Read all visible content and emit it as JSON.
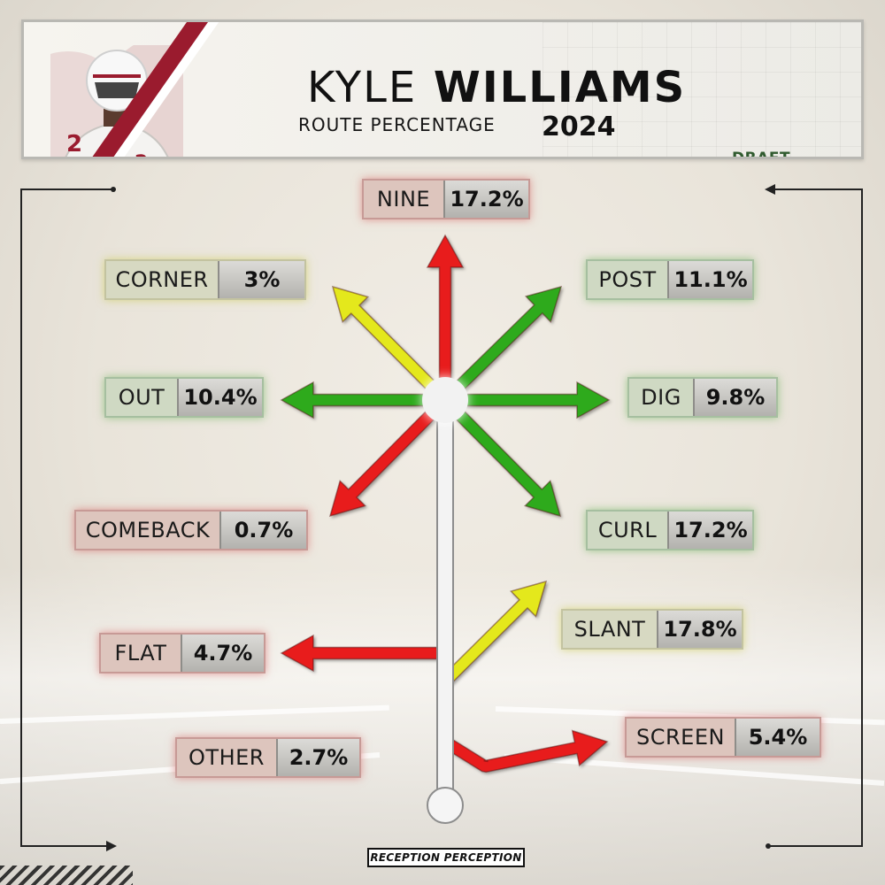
{
  "header": {
    "first_name": "KYLE",
    "last_name": "WILLIAMS",
    "subtitle": "ROUTE PERCENTAGE",
    "year": "2024",
    "badge": "DRAFT PROSPECT",
    "colors": {
      "stripe": "#9a1b2e",
      "badge": "#2f5a2e"
    }
  },
  "legend_colors": {
    "green": "#2faa1e",
    "yellow": "#e4e81e",
    "red": "#e81c1c"
  },
  "chart_data": {
    "type": "table",
    "title": "",
    "routes": [
      {
        "name": "NINE",
        "value": 17.2,
        "label": "17.2%",
        "color": "red"
      },
      {
        "name": "CORNER",
        "value": 3,
        "label": "3%",
        "color": "yellow"
      },
      {
        "name": "POST",
        "value": 11.1,
        "label": "11.1%",
        "color": "green"
      },
      {
        "name": "OUT",
        "value": 10.4,
        "label": "10.4%",
        "color": "green"
      },
      {
        "name": "DIG",
        "value": 9.8,
        "label": "9.8%",
        "color": "green"
      },
      {
        "name": "COMEBACK",
        "value": 0.7,
        "label": "0.7%",
        "color": "red"
      },
      {
        "name": "CURL",
        "value": 17.2,
        "label": "17.2%",
        "color": "green"
      },
      {
        "name": "SLANT",
        "value": 17.8,
        "label": "17.8%",
        "color": "yellow"
      },
      {
        "name": "FLAT",
        "value": 4.7,
        "label": "4.7%",
        "color": "red"
      },
      {
        "name": "SCREEN",
        "value": 5.4,
        "label": "5.4%",
        "color": "red"
      },
      {
        "name": "OTHER",
        "value": 2.7,
        "label": "2.7%",
        "color": "red"
      }
    ]
  },
  "footer": {
    "logo_text": "RECEPTION PERCEPTION"
  }
}
